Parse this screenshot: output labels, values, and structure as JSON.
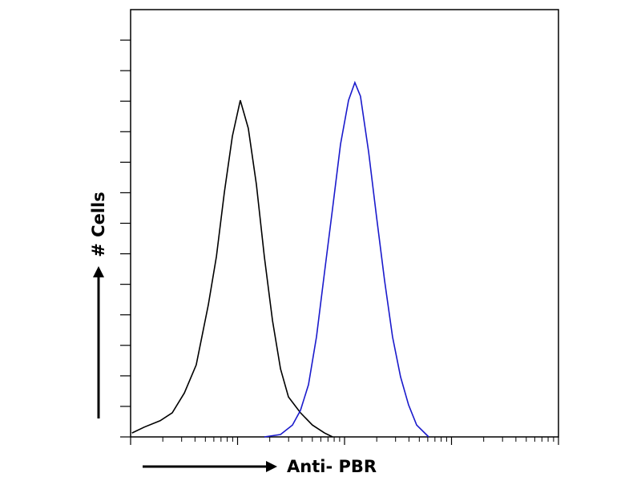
{
  "chart_data": {
    "type": "line",
    "x_label": "Anti- PBR",
    "y_label": "# Cells",
    "xscale": "log",
    "xlim": [
      1,
      10000
    ],
    "xticks": [
      1,
      10,
      100,
      1000,
      10000
    ],
    "ylim": [
      0,
      140
    ],
    "yticks": [
      0,
      10,
      20,
      30,
      40,
      50,
      60,
      70,
      80,
      90,
      100,
      110,
      120,
      130
    ],
    "series": [
      {
        "color": "#000000",
        "x": [
          1.03,
          1.34,
          1.89,
          2.45,
          3.18,
          4.11,
          5.33,
          6.34,
          7.52,
          8.94,
          10.6,
          12.6,
          15.0,
          17.8,
          21.2,
          25.2,
          29.9,
          38.7,
          50.1,
          65.0,
          77.3
        ],
        "values": [
          1.3,
          3.2,
          5.3,
          7.9,
          14.4,
          23.6,
          43.3,
          59.1,
          80.1,
          98.5,
          110.3,
          101.1,
          82.7,
          59.1,
          38.1,
          22.3,
          13.1,
          7.9,
          3.9,
          1.3,
          0
        ]
      },
      {
        "color": "#1a1acc",
        "x": [
          17.8,
          25.2,
          32.6,
          38.7,
          46.0,
          54.7,
          65.0,
          77.3,
          91.8,
          109,
          125,
          141,
          168,
          199,
          237,
          281,
          334,
          397,
          472,
          612
        ],
        "values": [
          0,
          0.8,
          3.9,
          8.7,
          17.1,
          32.8,
          53.9,
          74.9,
          95.9,
          110.3,
          116.1,
          111.6,
          93.3,
          72.2,
          51.2,
          32.8,
          19.7,
          10.5,
          3.9,
          0
        ]
      }
    ]
  }
}
